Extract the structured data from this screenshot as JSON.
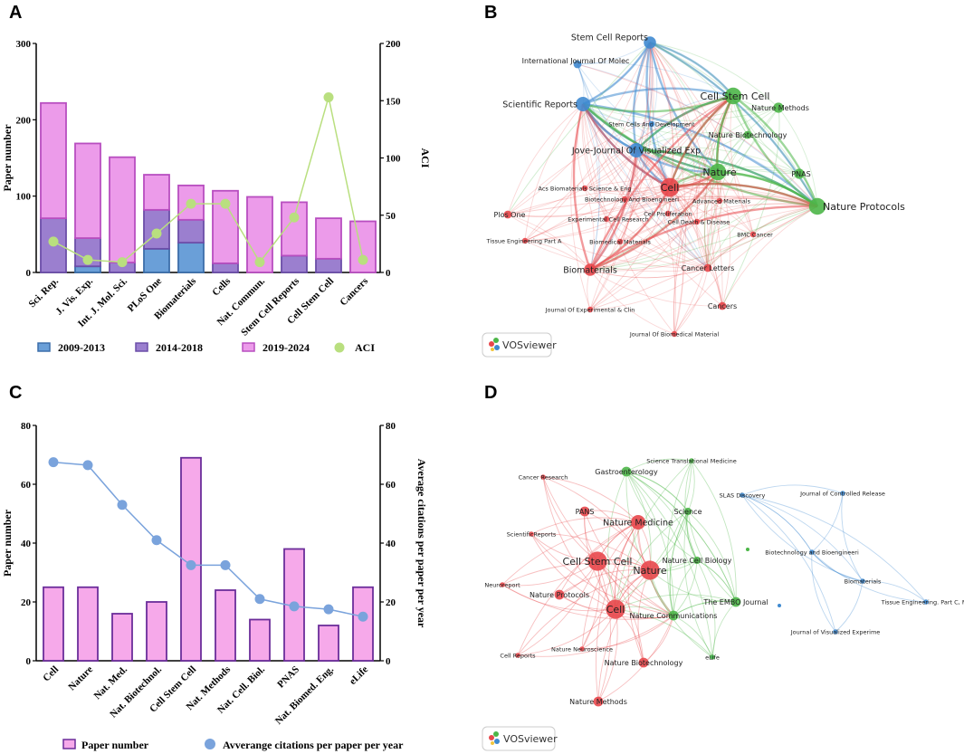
{
  "panels": {
    "a": "A",
    "b": "B",
    "c": "C",
    "d": "D"
  },
  "badge": {
    "label": "VOSviewer"
  },
  "colors": {
    "p1": "#6a9fd8",
    "p2": "#9b7fcf",
    "p3": "#ec9bea",
    "border1": "#3c6eaa",
    "border2": "#6b4ea8",
    "border3": "#b84ec0",
    "aci": "#b9df7f",
    "c_bar": "#f6a9ea",
    "c_border": "#6b2d9a",
    "c_line": "#7aa3dc",
    "red": "#e8474b",
    "green": "#4cb648",
    "blue": "#3f8ad0"
  },
  "chart_data": [
    {
      "id": "A",
      "type": "bar",
      "stacked": true,
      "categories": [
        "Sci. Rep.",
        "J. Vis. Exp.",
        "Int. J. Mol. Sci.",
        "PLoS One",
        "Biomaterials",
        "Cells",
        "Nat. Commun.",
        "Stem Cell Reports",
        "Cell Stem Cell",
        "Cancers"
      ],
      "series": [
        {
          "name": "2009-2013",
          "values": [
            0,
            8,
            0,
            31,
            39,
            0,
            0,
            0,
            0,
            0
          ]
        },
        {
          "name": "2014-2018",
          "values": [
            71,
            37,
            13,
            51,
            30,
            12,
            0,
            22,
            18,
            0
          ]
        },
        {
          "name": "2019-2024",
          "values": [
            151,
            124,
            138,
            46,
            45,
            95,
            99,
            70,
            53,
            67
          ]
        }
      ],
      "line": {
        "name": "ACI",
        "values": [
          27,
          11,
          9,
          34,
          60,
          60,
          9,
          48,
          153,
          11
        ]
      },
      "ylabel": "Paper number",
      "y2label": "ACI",
      "ylim": [
        0,
        300
      ],
      "y2lim": [
        0,
        200
      ],
      "yticks": [
        0,
        100,
        200,
        300
      ],
      "y2ticks": [
        0,
        50,
        100,
        150,
        200
      ],
      "legend": [
        "2009-2013",
        "2014-2018",
        "2019-2024",
        "ACI"
      ]
    },
    {
      "id": "C",
      "type": "bar",
      "categories": [
        "Cell",
        "Nature",
        "Nat. Med.",
        "Nat. Biotechnol.",
        "Cell Stem Cell",
        "Nat. Methods",
        "Nat. Cell. Biol.",
        "PNAS",
        "Nat. Biomed. Eng.",
        "eLife"
      ],
      "series": [
        {
          "name": "Paper number",
          "values": [
            25,
            25,
            16,
            20,
            69,
            24,
            14,
            38,
            12,
            25
          ]
        }
      ],
      "line": {
        "name": "Avverange citations per paper per year",
        "values": [
          67.5,
          66.5,
          53,
          41,
          32.5,
          32.5,
          21,
          18.5,
          17.5,
          15
        ]
      },
      "ylabel": "Paper number",
      "y2label": "Average citations per paper per year",
      "ylim": [
        0,
        80
      ],
      "y2lim": [
        0,
        80
      ],
      "yticks": [
        0,
        20,
        40,
        60,
        80
      ],
      "y2ticks": [
        0,
        20,
        40,
        60,
        80
      ],
      "legend": [
        "Paper number",
        "Avverange citations per paper per year"
      ]
    }
  ],
  "network_b": {
    "nodes": [
      {
        "label": "Stem Cell Reports",
        "cluster": "blue",
        "weight": 4
      },
      {
        "label": "International Journal Of Molec",
        "cluster": "blue",
        "weight": 2
      },
      {
        "label": "Scientific Reports",
        "cluster": "blue",
        "weight": 5
      },
      {
        "label": "Stem Cells And Development",
        "cluster": "blue",
        "weight": 1
      },
      {
        "label": "Jove-Journal Of Visualized Exp",
        "cluster": "blue",
        "weight": 5
      },
      {
        "label": "Cell Stem Cell",
        "cluster": "green",
        "weight": 6
      },
      {
        "label": "Nature Methods",
        "cluster": "green",
        "weight": 3
      },
      {
        "label": "Nature Biotechnology",
        "cluster": "green",
        "weight": 2
      },
      {
        "label": "Nature",
        "cluster": "green",
        "weight": 6
      },
      {
        "label": "PNAS",
        "cluster": "green",
        "weight": 3
      },
      {
        "label": "Nature Protocols",
        "cluster": "green",
        "weight": 6
      },
      {
        "label": "Cell",
        "cluster": "red",
        "weight": 7
      },
      {
        "label": "Acs Biomaterials Science & Eng",
        "cluster": "red",
        "weight": 1
      },
      {
        "label": "Biotechnology And Bioengineeri",
        "cluster": "red",
        "weight": 1
      },
      {
        "label": "Advanced Materials",
        "cluster": "red",
        "weight": 1
      },
      {
        "label": "Plos One",
        "cluster": "red",
        "weight": 2
      },
      {
        "label": "Experimental Cell Research",
        "cluster": "red",
        "weight": 1
      },
      {
        "label": "Cell Proliferation",
        "cluster": "red",
        "weight": 1
      },
      {
        "label": "Cell Death & Disease",
        "cluster": "red",
        "weight": 1
      },
      {
        "label": "Tissue Engineering Part A",
        "cluster": "red",
        "weight": 1
      },
      {
        "label": "Biomedical Materials",
        "cluster": "red",
        "weight": 1
      },
      {
        "label": "BMC Cancer",
        "cluster": "red",
        "weight": 1
      },
      {
        "label": "Biomaterials",
        "cluster": "red",
        "weight": 4
      },
      {
        "label": "Cancer Letters",
        "cluster": "red",
        "weight": 2
      },
      {
        "label": "Cancers",
        "cluster": "red",
        "weight": 2
      },
      {
        "label": "Journal Of Experimental & Clin",
        "cluster": "red",
        "weight": 1
      },
      {
        "label": "Journal Of Biomedical Material",
        "cluster": "red",
        "weight": 1
      }
    ]
  },
  "network_d": {
    "nodes": [
      {
        "label": "Science Translational Medicine",
        "cluster": "green",
        "weight": 1
      },
      {
        "label": "Gastroenterology",
        "cluster": "green",
        "weight": 3
      },
      {
        "label": "Cancer Research",
        "cluster": "red",
        "weight": 1
      },
      {
        "label": "SLAS Discovery",
        "cluster": "blue",
        "weight": 1
      },
      {
        "label": "Journal of Controlled Release",
        "cluster": "blue",
        "weight": 1
      },
      {
        "label": "PANS",
        "cluster": "red",
        "weight": 3
      },
      {
        "label": "Nature Medicine",
        "cluster": "red",
        "weight": 5
      },
      {
        "label": "Science",
        "cluster": "green",
        "weight": 2
      },
      {
        "label": "ScientificReports",
        "cluster": "red",
        "weight": 1
      },
      {
        "label": "Biotechnology and Bioengineeri",
        "cluster": "blue",
        "weight": 1
      },
      {
        "label": "Nature Cell Biology",
        "cluster": "green",
        "weight": 2
      },
      {
        "label": "Cell Stem Cell",
        "cluster": "red",
        "weight": 7
      },
      {
        "label": "Nature",
        "cluster": "red",
        "weight": 7
      },
      {
        "label": "Biomaterials",
        "cluster": "blue",
        "weight": 1
      },
      {
        "label": "Neuroreport",
        "cluster": "red",
        "weight": 1
      },
      {
        "label": "Nature Protocols",
        "cluster": "red",
        "weight": 3
      },
      {
        "label": "Tissue Engineering. Part C, Me",
        "cluster": "blue",
        "weight": 1
      },
      {
        "label": "The EMBO Journal",
        "cluster": "green",
        "weight": 3
      },
      {
        "label": "Cell",
        "cluster": "red",
        "weight": 7
      },
      {
        "label": "Nature Communications",
        "cluster": "green",
        "weight": 3
      },
      {
        "label": "Journal of Visualized Experime",
        "cluster": "blue",
        "weight": 1
      },
      {
        "label": "Nature Neuroscience",
        "cluster": "red",
        "weight": 1
      },
      {
        "label": "Cell Reports",
        "cluster": "red",
        "weight": 1
      },
      {
        "label": "eLife",
        "cluster": "green",
        "weight": 1
      },
      {
        "label": "Nature Biotechnology",
        "cluster": "red",
        "weight": 3
      },
      {
        "label": "Nature Methods",
        "cluster": "red",
        "weight": 3
      }
    ]
  }
}
